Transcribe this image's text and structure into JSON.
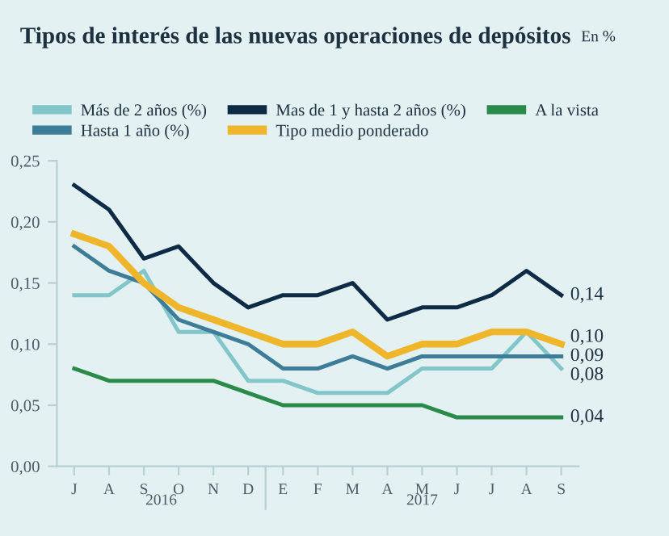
{
  "chart_data": {
    "type": "line",
    "title": "Tipos de interés de las nuevas operaciones de depósitos",
    "subtitle": "En %",
    "categories": [
      "J",
      "A",
      "S",
      "O",
      "N",
      "D",
      "E",
      "F",
      "M",
      "A",
      "M",
      "J",
      "J",
      "A",
      "S"
    ],
    "series": [
      {
        "name": "Más de 2 años (%)",
        "color": "#82c6ca",
        "values": [
          0.14,
          0.14,
          0.16,
          0.11,
          0.11,
          0.07,
          0.07,
          0.06,
          0.06,
          0.06,
          0.08,
          0.08,
          0.08,
          0.11,
          0.08
        ],
        "value_labels": [
          null,
          null,
          null,
          null,
          null,
          null,
          null,
          null,
          null,
          null,
          null,
          null,
          null,
          null,
          "0,08"
        ]
      },
      {
        "name": "Mas de 1 y hasta 2 años (%)",
        "color": "#0d2b45",
        "values": [
          0.23,
          0.21,
          0.17,
          0.18,
          0.15,
          0.13,
          0.14,
          0.14,
          0.15,
          0.12,
          0.13,
          0.13,
          0.14,
          0.16,
          0.14
        ],
        "value_labels": [
          null,
          null,
          null,
          null,
          null,
          null,
          null,
          null,
          null,
          null,
          null,
          null,
          null,
          null,
          "0,14"
        ]
      },
      {
        "name": "A la vista",
        "color": "#2a8a4a",
        "values": [
          0.08,
          0.07,
          0.07,
          0.07,
          0.07,
          0.06,
          0.05,
          0.05,
          0.05,
          0.05,
          0.05,
          0.04,
          0.04,
          0.04,
          0.04
        ],
        "value_labels": [
          null,
          null,
          null,
          null,
          null,
          null,
          null,
          null,
          null,
          null,
          null,
          null,
          null,
          null,
          "0,04"
        ]
      },
      {
        "name": "Hasta 1 año (%)",
        "color": "#3d7d98",
        "values": [
          0.18,
          0.16,
          0.15,
          0.12,
          0.11,
          0.1,
          0.08,
          0.08,
          0.09,
          0.08,
          0.09,
          0.09,
          0.09,
          0.09,
          0.09
        ],
        "value_labels": [
          null,
          null,
          null,
          null,
          null,
          null,
          null,
          null,
          null,
          null,
          null,
          null,
          null,
          null,
          "0,09"
        ]
      },
      {
        "name": "Tipo medio ponderado",
        "color": "#efb62c",
        "values": [
          0.19,
          0.18,
          0.15,
          0.13,
          0.12,
          0.11,
          0.1,
          0.1,
          0.11,
          0.09,
          0.1,
          0.1,
          0.11,
          0.11,
          0.1
        ],
        "value_labels": [
          null,
          null,
          null,
          null,
          null,
          null,
          null,
          null,
          null,
          null,
          null,
          null,
          null,
          null,
          "0,10"
        ]
      }
    ],
    "ylim": [
      0,
      0.25
    ],
    "yticks": [
      {
        "value": 0,
        "label": "0,00"
      },
      {
        "value": 0.05,
        "label": "0,05"
      },
      {
        "value": 0.1,
        "label": "0,10"
      },
      {
        "value": 0.15,
        "label": "0,15"
      },
      {
        "value": 0.2,
        "label": "0,20"
      },
      {
        "value": 0.25,
        "label": "0,25"
      }
    ],
    "annotations": [
      "2016",
      "2017"
    ],
    "grid": false,
    "legend": "top",
    "marker": "none",
    "line_style": "solid"
  }
}
